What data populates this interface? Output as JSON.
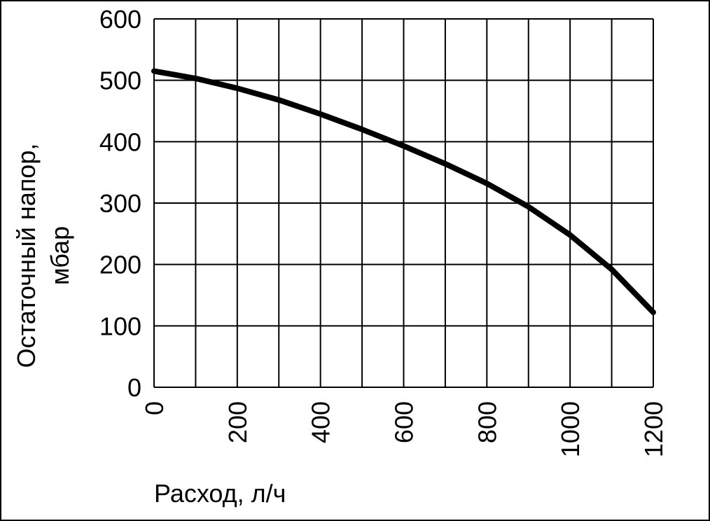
{
  "chart_data": {
    "type": "line",
    "ylabel": [
      "Остаточный напор,",
      "мбар"
    ],
    "xlabel": "Расход, л/ч",
    "x": [
      0,
      100,
      200,
      300,
      400,
      500,
      600,
      700,
      800,
      900,
      1000,
      1100,
      1200
    ],
    "series": [
      {
        "color": "#000000",
        "values": [
          515,
          503,
          487,
          468,
          445,
          420,
          393,
          364,
          332,
          294,
          248,
          192,
          122
        ]
      }
    ],
    "xlim": [
      0,
      1200
    ],
    "xticks": [
      0,
      200,
      400,
      600,
      800,
      1000,
      1200
    ],
    "xgrid": [
      0,
      100,
      200,
      300,
      400,
      500,
      600,
      700,
      800,
      900,
      1000,
      1100,
      1200
    ],
    "ylim": [
      0,
      600
    ],
    "yticks": [
      0,
      100,
      200,
      300,
      400,
      500,
      600
    ],
    "grid": true
  }
}
